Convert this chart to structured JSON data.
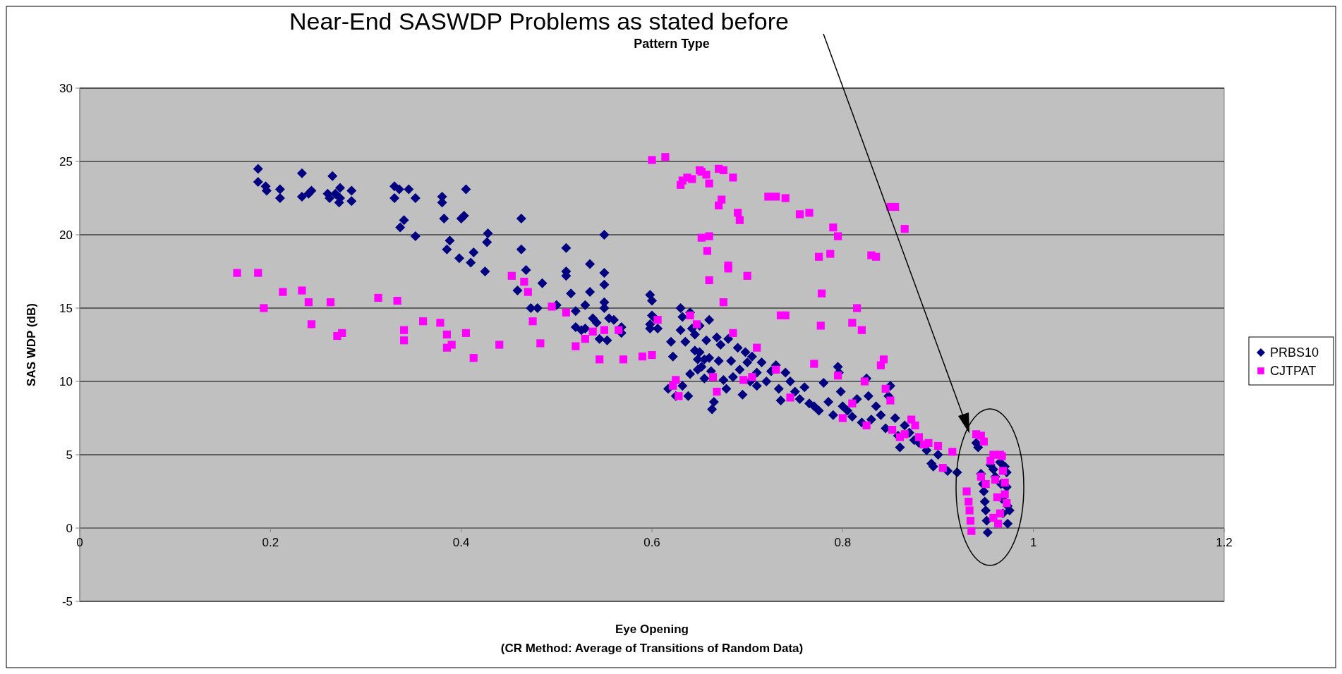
{
  "chart_data": {
    "type": "scatter",
    "title": "Near-End SASWDP Problems as stated before",
    "xlabel": "Eye Opening\n(CR Method: Average of Transitions of Random Data)",
    "ylabel": "SAS WDP (dB)",
    "annotations": [
      "Pattern Type"
    ],
    "xlim": [
      0,
      1.2
    ],
    "xticks": [
      0,
      0.2,
      0.4,
      0.6,
      0.8,
      1,
      1.2
    ],
    "ylim": [
      -5,
      30
    ],
    "yticks": [
      -5,
      0,
      5,
      10,
      15,
      20,
      25,
      30
    ],
    "grid": "y",
    "legend": "right",
    "series": [
      {
        "name": "PRBS10",
        "color": "#000080",
        "marker": "diamond",
        "x": [
          0.187,
          0.187,
          0.195,
          0.196,
          0.21,
          0.21,
          0.233,
          0.233,
          0.24,
          0.243,
          0.26,
          0.262,
          0.265,
          0.268,
          0.272,
          0.273,
          0.273,
          0.285,
          0.285,
          0.33,
          0.33,
          0.335,
          0.336,
          0.34,
          0.345,
          0.352,
          0.352,
          0.38,
          0.38,
          0.382,
          0.385,
          0.388,
          0.398,
          0.4,
          0.403,
          0.405,
          0.41,
          0.413,
          0.425,
          0.427,
          0.428,
          0.463,
          0.463,
          0.468,
          0.459,
          0.473,
          0.48,
          0.485,
          0.5,
          0.51,
          0.51,
          0.51,
          0.515,
          0.52,
          0.52,
          0.526,
          0.53,
          0.53,
          0.535,
          0.535,
          0.538,
          0.542,
          0.545,
          0.55,
          0.55,
          0.55,
          0.55,
          0.55,
          0.553,
          0.555,
          0.56,
          0.568,
          0.568,
          0.598,
          0.6,
          0.6,
          0.598,
          0.603,
          0.598,
          0.606,
          0.62,
          0.622,
          0.63,
          0.632,
          0.63,
          0.635,
          0.64,
          0.642,
          0.645,
          0.645,
          0.648,
          0.65,
          0.652,
          0.655,
          0.657,
          0.66,
          0.66,
          0.662,
          0.665,
          0.663,
          0.668,
          0.67,
          0.672,
          0.675,
          0.678,
          0.68,
          0.683,
          0.685,
          0.69,
          0.692,
          0.695,
          0.698,
          0.7,
          0.703,
          0.705,
          0.71,
          0.71,
          0.715,
          0.72,
          0.725,
          0.73,
          0.733,
          0.735,
          0.74,
          0.745,
          0.75,
          0.755,
          0.76,
          0.765,
          0.77,
          0.775,
          0.78,
          0.785,
          0.79,
          0.795,
          0.796,
          0.798,
          0.8,
          0.805,
          0.81,
          0.815,
          0.82,
          0.825,
          0.827,
          0.83,
          0.835,
          0.84,
          0.845,
          0.848,
          0.85,
          0.855,
          0.858,
          0.86,
          0.865,
          0.87,
          0.875,
          0.88,
          0.888,
          0.893,
          0.9,
          0.895,
          0.91,
          0.92,
          0.617,
          0.625,
          0.632,
          0.638,
          0.64,
          0.648,
          0.65,
          0.655,
          0.94,
          0.942,
          0.945,
          0.947,
          0.948,
          0.949,
          0.95,
          0.951,
          0.952,
          0.955,
          0.958,
          0.96,
          0.965,
          0.966,
          0.967,
          0.968,
          0.97,
          0.972,
          0.972,
          0.973,
          0.973,
          0.975
        ],
        "values": [
          24.5,
          23.6,
          23.3,
          23.0,
          23.1,
          22.5,
          24.2,
          22.6,
          22.8,
          23.0,
          22.8,
          22.5,
          24.0,
          22.8,
          22.2,
          23.2,
          22.5,
          23.0,
          22.3,
          23.3,
          22.5,
          23.1,
          20.5,
          21.0,
          23.1,
          19.9,
          22.5,
          22.6,
          22.2,
          21.1,
          19.0,
          19.6,
          18.4,
          21.1,
          21.3,
          23.1,
          18.1,
          18.8,
          17.5,
          19.5,
          20.1,
          21.1,
          19.0,
          17.6,
          16.2,
          15.0,
          15.0,
          16.7,
          15.2,
          19.1,
          17.5,
          17.2,
          16.0,
          14.8,
          13.7,
          13.5,
          15.2,
          13.6,
          18.0,
          16.1,
          14.3,
          14.0,
          12.9,
          20.0,
          17.4,
          16.6,
          15.4,
          15.0,
          12.8,
          14.3,
          14.2,
          13.7,
          13.3,
          15.9,
          15.5,
          14.5,
          13.9,
          14.3,
          13.6,
          13.6,
          12.7,
          11.7,
          15.0,
          14.4,
          13.5,
          12.7,
          14.7,
          13.6,
          13.2,
          12.1,
          11.5,
          13.8,
          11.0,
          10.2,
          12.8,
          14.2,
          11.6,
          10.7,
          8.6,
          8.1,
          13.0,
          11.4,
          12.5,
          10.1,
          9.5,
          12.9,
          11.4,
          10.3,
          12.3,
          10.8,
          9.1,
          12.0,
          11.3,
          10.0,
          11.7,
          9.7,
          10.6,
          11.3,
          10.0,
          10.7,
          11.1,
          9.5,
          8.7,
          10.6,
          10.0,
          9.3,
          8.8,
          9.6,
          8.5,
          8.3,
          8.0,
          9.9,
          8.6,
          7.7,
          11.0,
          10.6,
          9.3,
          8.3,
          8.0,
          7.6,
          8.8,
          7.2,
          10.2,
          9.0,
          7.4,
          8.3,
          7.7,
          6.8,
          9.0,
          9.7,
          7.5,
          6.3,
          5.5,
          7.0,
          6.5,
          6.0,
          5.8,
          5.3,
          4.4,
          5.0,
          4.2,
          3.9,
          3.8,
          9.5,
          9.0,
          9.7,
          9.0,
          10.5,
          10.8,
          12.0,
          11.5,
          5.8,
          5.5,
          3.7,
          3.0,
          2.5,
          1.8,
          1.2,
          0.5,
          -0.3,
          4.3,
          4.0,
          3.5,
          4.5,
          3.0,
          2.0,
          1.0,
          4.2,
          3.8,
          2.8,
          1.5,
          0.3,
          1.2
        ]
      },
      {
        "name": "CJTPAT",
        "color": "#ff00ff",
        "marker": "square",
        "x": [
          0.165,
          0.187,
          0.193,
          0.213,
          0.233,
          0.24,
          0.243,
          0.263,
          0.27,
          0.275,
          0.313,
          0.333,
          0.34,
          0.34,
          0.36,
          0.378,
          0.385,
          0.385,
          0.39,
          0.405,
          0.413,
          0.44,
          0.453,
          0.466,
          0.47,
          0.475,
          0.483,
          0.495,
          0.51,
          0.52,
          0.53,
          0.538,
          0.545,
          0.55,
          0.565,
          0.57,
          0.59,
          0.6,
          0.606,
          0.6,
          0.614,
          0.622,
          0.625,
          0.628,
          0.63,
          0.632,
          0.637,
          0.64,
          0.642,
          0.647,
          0.65,
          0.652,
          0.652,
          0.657,
          0.658,
          0.66,
          0.66,
          0.66,
          0.664,
          0.668,
          0.67,
          0.67,
          0.673,
          0.675,
          0.675,
          0.68,
          0.68,
          0.685,
          0.685,
          0.69,
          0.692,
          0.696,
          0.7,
          0.705,
          0.71,
          0.722,
          0.73,
          0.73,
          0.735,
          0.74,
          0.74,
          0.745,
          0.755,
          0.765,
          0.77,
          0.775,
          0.777,
          0.778,
          0.787,
          0.79,
          0.795,
          0.795,
          0.8,
          0.81,
          0.81,
          0.815,
          0.82,
          0.823,
          0.825,
          0.83,
          0.835,
          0.84,
          0.843,
          0.845,
          0.85,
          0.852,
          0.85,
          0.855,
          0.865,
          0.86,
          0.865,
          0.872,
          0.876,
          0.88,
          0.885,
          0.89,
          0.9,
          0.905,
          0.915,
          0.94,
          0.945,
          0.948,
          0.93,
          0.932,
          0.933,
          0.934,
          0.935,
          0.945,
          0.95,
          0.955,
          0.958,
          0.96,
          0.962,
          0.965,
          0.967,
          0.968,
          0.97,
          0.97,
          0.972,
          0.958,
          0.963,
          0.965
        ],
        "values": [
          17.4,
          17.4,
          15.0,
          16.1,
          16.2,
          15.4,
          13.9,
          15.4,
          13.1,
          13.3,
          15.7,
          15.5,
          13.5,
          12.8,
          14.1,
          14.0,
          13.2,
          12.3,
          12.5,
          13.3,
          11.6,
          12.5,
          17.2,
          16.8,
          16.1,
          14.1,
          12.6,
          15.1,
          14.7,
          12.4,
          12.9,
          13.4,
          11.5,
          13.5,
          13.5,
          11.5,
          11.7,
          11.8,
          14.2,
          25.1,
          25.3,
          9.7,
          10.1,
          9.0,
          23.4,
          23.7,
          23.9,
          14.5,
          23.8,
          13.9,
          24.4,
          24.3,
          19.8,
          24.1,
          18.9,
          23.5,
          19.9,
          16.9,
          10.3,
          9.3,
          24.5,
          22.0,
          22.4,
          24.4,
          15.4,
          17.9,
          17.7,
          23.9,
          13.3,
          21.5,
          21.0,
          10.1,
          17.2,
          10.3,
          12.3,
          22.6,
          22.6,
          10.8,
          14.5,
          14.5,
          22.5,
          8.9,
          21.4,
          21.5,
          11.2,
          18.5,
          13.8,
          16.0,
          18.7,
          20.5,
          19.9,
          10.4,
          7.5,
          14.0,
          8.5,
          15.0,
          13.5,
          10.0,
          7.0,
          18.6,
          18.5,
          11.1,
          11.5,
          9.5,
          8.7,
          6.7,
          21.9,
          21.9,
          20.4,
          6.2,
          6.4,
          7.4,
          7.0,
          6.2,
          5.7,
          5.8,
          5.6,
          4.1,
          5.2,
          6.4,
          6.3,
          5.9,
          2.5,
          1.8,
          1.2,
          0.5,
          -0.2,
          3.5,
          3.0,
          4.6,
          5.0,
          3.3,
          2.1,
          1.0,
          4.9,
          3.9,
          3.1,
          2.3,
          1.7,
          0.7,
          0.3,
          5.0
        ]
      }
    ]
  }
}
